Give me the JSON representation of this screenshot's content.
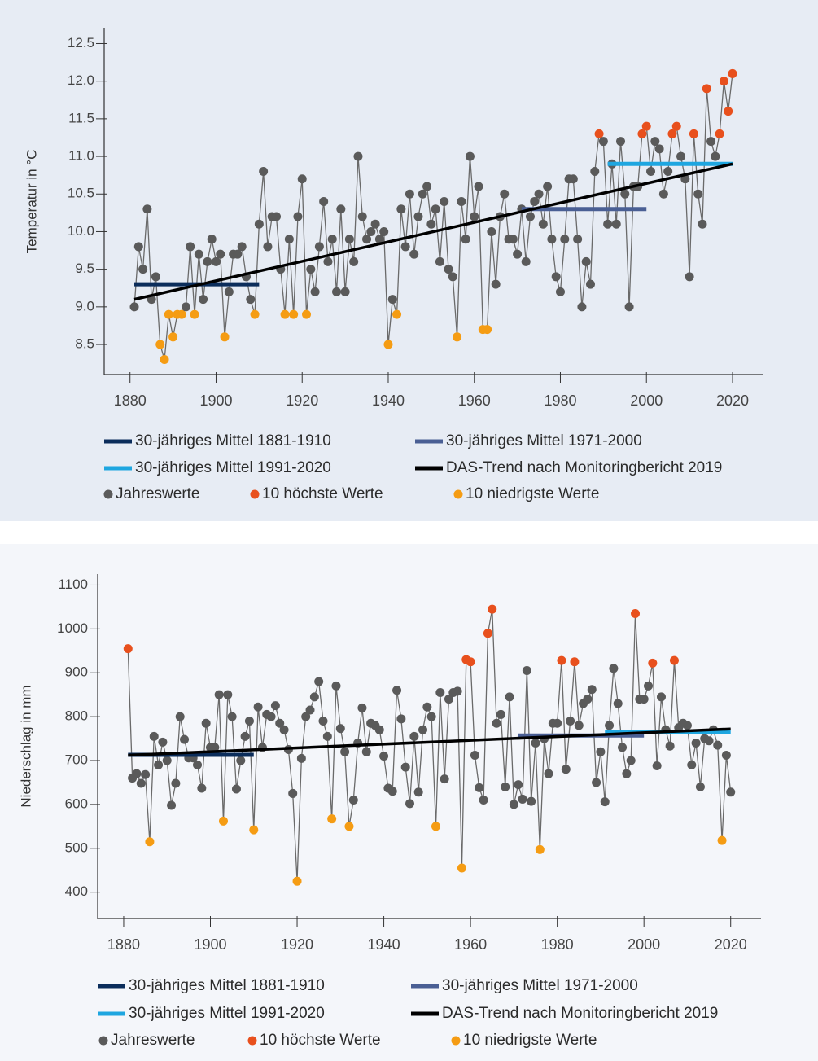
{
  "chart_data": [
    {
      "type": "line",
      "ylabel": "Temperatur in °C",
      "xlim": [
        1874,
        2027
      ],
      "xticks": [
        1880,
        1900,
        1920,
        1940,
        1960,
        1980,
        2000,
        2020
      ],
      "ylim": [
        8.1,
        12.7
      ],
      "yticks": [
        8.5,
        {
          "value": 9,
          "label": "9.0"
        },
        9.5,
        {
          "value": 10,
          "label": "10.0"
        },
        10.5,
        {
          "value": 11,
          "label": "11.0"
        },
        11.5,
        {
          "value": 12,
          "label": "12.0"
        },
        12.5
      ],
      "x": [
        1881,
        1882,
        1883,
        1884,
        1885,
        1886,
        1887,
        1888,
        1889,
        1890,
        1891,
        1892,
        1893,
        1894,
        1895,
        1896,
        1897,
        1898,
        1899,
        1900,
        1901,
        1902,
        1903,
        1904,
        1905,
        1906,
        1907,
        1908,
        1909,
        1910,
        1911,
        1912,
        1913,
        1914,
        1915,
        1916,
        1917,
        1918,
        1919,
        1920,
        1921,
        1922,
        1923,
        1924,
        1925,
        1926,
        1927,
        1928,
        1929,
        1930,
        1931,
        1932,
        1933,
        1934,
        1935,
        1936,
        1937,
        1938,
        1939,
        1940,
        1941,
        1942,
        1943,
        1944,
        1945,
        1946,
        1947,
        1948,
        1949,
        1950,
        1951,
        1952,
        1953,
        1954,
        1955,
        1956,
        1957,
        1958,
        1959,
        1960,
        1961,
        1962,
        1963,
        1964,
        1965,
        1966,
        1967,
        1968,
        1969,
        1970,
        1971,
        1972,
        1973,
        1974,
        1975,
        1976,
        1977,
        1978,
        1979,
        1980,
        1981,
        1982,
        1983,
        1984,
        1985,
        1986,
        1987,
        1988,
        1989,
        1990,
        1991,
        1992,
        1993,
        1994,
        1995,
        1996,
        1997,
        1998,
        1999,
        2000,
        2001,
        2002,
        2003,
        2004,
        2005,
        2006,
        2007,
        2008,
        2009,
        2010,
        2011,
        2012,
        2013,
        2014,
        2015,
        2016,
        2017,
        2018,
        2019,
        2020
      ],
      "series": [
        {
          "name": "30-jähriges Mittel 1881-1910",
          "color": "#0b2d5b",
          "x": [
            1881,
            1910
          ],
          "values": [
            9.3,
            9.3
          ]
        },
        {
          "name": "30-jähriges Mittel 1971-2000",
          "color": "#4a5f94",
          "x": [
            1971,
            2000
          ],
          "values": [
            10.3,
            10.3
          ]
        },
        {
          "name": "30-jähriges Mittel 1991-2020",
          "color": "#1ea6e0",
          "x": [
            1991,
            2020
          ],
          "values": [
            10.9,
            10.9
          ]
        },
        {
          "name": "DAS-Trend nach Monitoringbericht 2019",
          "color": "#000000",
          "x": [
            1881,
            2020
          ],
          "values": [
            9.1,
            10.9
          ]
        },
        {
          "name": "Jahreswerte",
          "color": "#5a5a5a",
          "values": [
            9.0,
            9.8,
            9.5,
            10.3,
            9.1,
            9.4,
            8.5,
            8.3,
            8.9,
            8.6,
            8.9,
            8.9,
            9.0,
            9.8,
            8.9,
            9.7,
            9.1,
            9.6,
            9.9,
            9.6,
            9.7,
            8.6,
            9.2,
            9.7,
            9.7,
            9.8,
            9.4,
            9.1,
            8.9,
            10.1,
            10.8,
            9.8,
            10.2,
            10.2,
            9.5,
            8.9,
            9.9,
            8.9,
            10.2,
            10.7,
            8.9,
            9.5,
            9.2,
            9.8,
            10.4,
            9.6,
            9.9,
            9.2,
            10.3,
            9.2,
            9.9,
            9.6,
            11.0,
            10.2,
            9.9,
            10.0,
            10.1,
            9.9,
            10.0,
            8.5,
            9.1,
            8.9,
            10.3,
            9.8,
            10.5,
            9.7,
            10.2,
            10.5,
            10.6,
            10.1,
            10.3,
            9.6,
            10.4,
            9.5,
            9.4,
            8.6,
            10.4,
            9.9,
            11.0,
            10.2,
            10.6,
            8.7,
            8.7,
            10.0,
            9.3,
            10.2,
            10.5,
            9.9,
            9.9,
            9.7,
            10.3,
            9.6,
            10.2,
            10.4,
            10.5,
            10.1,
            10.6,
            9.9,
            9.4,
            9.2,
            9.9,
            10.7,
            10.7,
            9.9,
            9.0,
            9.6,
            9.3,
            10.8,
            11.3,
            11.2,
            10.1,
            10.9,
            10.1,
            11.2,
            10.5,
            9.0,
            10.6,
            10.6,
            11.3,
            11.4,
            10.8,
            11.2,
            11.1,
            10.5,
            10.8,
            11.3,
            11.4,
            11.0,
            10.7,
            9.4,
            11.3,
            10.5,
            10.1,
            11.9,
            11.2,
            11.0,
            11.3,
            12.0,
            11.6,
            12.1
          ]
        },
        {
          "name": "10 höchste Werte",
          "color": "#e8501d",
          "highlight": "max"
        },
        {
          "name": "10 niedrigste Werte",
          "color": "#f59c13",
          "highlight": "min"
        }
      ]
    },
    {
      "type": "line",
      "ylabel": "Niederschlag in mm",
      "xlim": [
        1874,
        2027
      ],
      "xticks": [
        1880,
        1900,
        1920,
        1940,
        1960,
        1980,
        2000,
        2020
      ],
      "ylim": [
        340,
        1125
      ],
      "yticks": [
        400,
        500,
        600,
        700,
        800,
        900,
        1000,
        1100
      ],
      "x": [
        1881,
        1882,
        1883,
        1884,
        1885,
        1886,
        1887,
        1888,
        1889,
        1890,
        1891,
        1892,
        1893,
        1894,
        1895,
        1896,
        1897,
        1898,
        1899,
        1900,
        1901,
        1902,
        1903,
        1904,
        1905,
        1906,
        1907,
        1908,
        1909,
        1910,
        1911,
        1912,
        1913,
        1914,
        1915,
        1916,
        1917,
        1918,
        1919,
        1920,
        1921,
        1922,
        1923,
        1924,
        1925,
        1926,
        1927,
        1928,
        1929,
        1930,
        1931,
        1932,
        1933,
        1934,
        1935,
        1936,
        1937,
        1938,
        1939,
        1940,
        1941,
        1942,
        1943,
        1944,
        1945,
        1946,
        1947,
        1948,
        1949,
        1950,
        1951,
        1952,
        1953,
        1954,
        1955,
        1956,
        1957,
        1958,
        1959,
        1960,
        1961,
        1962,
        1963,
        1964,
        1965,
        1966,
        1967,
        1968,
        1969,
        1970,
        1971,
        1972,
        1973,
        1974,
        1975,
        1976,
        1977,
        1978,
        1979,
        1980,
        1981,
        1982,
        1983,
        1984,
        1985,
        1986,
        1987,
        1988,
        1989,
        1990,
        1991,
        1992,
        1993,
        1994,
        1995,
        1996,
        1997,
        1998,
        1999,
        2000,
        2001,
        2002,
        2003,
        2004,
        2005,
        2006,
        2007,
        2008,
        2009,
        2010,
        2011,
        2012,
        2013,
        2014,
        2015,
        2016,
        2017,
        2018,
        2019,
        2020
      ],
      "series": [
        {
          "name": "30-jähriges Mittel 1881-1910",
          "color": "#0b2d5b",
          "x": [
            1881,
            1910
          ],
          "values": [
            713,
            713
          ]
        },
        {
          "name": "30-jähriges Mittel 1971-2000",
          "color": "#4a5f94",
          "x": [
            1971,
            2000
          ],
          "values": [
            757,
            757
          ]
        },
        {
          "name": "30-jähriges Mittel 1991-2020",
          "color": "#1ea6e0",
          "x": [
            1991,
            2020
          ],
          "values": [
            765,
            765
          ]
        },
        {
          "name": "DAS-Trend nach Monitoringbericht 2019",
          "color": "#000000",
          "x": [
            1881,
            2020
          ],
          "values": [
            712,
            772
          ]
        },
        {
          "name": "Jahreswerte",
          "color": "#5a5a5a",
          "values": [
            955,
            660,
            670,
            648,
            668,
            515,
            755,
            690,
            742,
            700,
            598,
            648,
            800,
            748,
            706,
            706,
            690,
            637,
            785,
            730,
            730,
            850,
            562,
            850,
            800,
            635,
            700,
            755,
            790,
            542,
            822,
            730,
            805,
            800,
            825,
            785,
            770,
            725,
            625,
            425,
            705,
            800,
            815,
            845,
            880,
            790,
            755,
            567,
            870,
            773,
            720,
            550,
            610,
            740,
            820,
            720,
            785,
            780,
            770,
            710,
            637,
            630,
            860,
            795,
            685,
            602,
            755,
            628,
            770,
            822,
            800,
            550,
            855,
            658,
            840,
            855,
            858,
            455,
            930,
            925,
            712,
            638,
            610,
            990,
            1045,
            785,
            805,
            640,
            845,
            600,
            645,
            612,
            905,
            607,
            740,
            497,
            750,
            670,
            785,
            785,
            928,
            680,
            790,
            925,
            780,
            830,
            840,
            862,
            650,
            720,
            606,
            780,
            910,
            830,
            730,
            670,
            700,
            1035,
            840,
            840,
            870,
            922,
            688,
            845,
            770,
            733,
            928,
            775,
            785,
            780,
            690,
            740,
            640,
            750,
            745,
            770,
            735,
            518,
            712,
            628
          ]
        },
        {
          "name": "10 höchste Werte",
          "color": "#e8501d",
          "highlight": "max"
        },
        {
          "name": "10 niedrigste Werte",
          "color": "#f59c13",
          "highlight": "min"
        }
      ]
    }
  ]
}
